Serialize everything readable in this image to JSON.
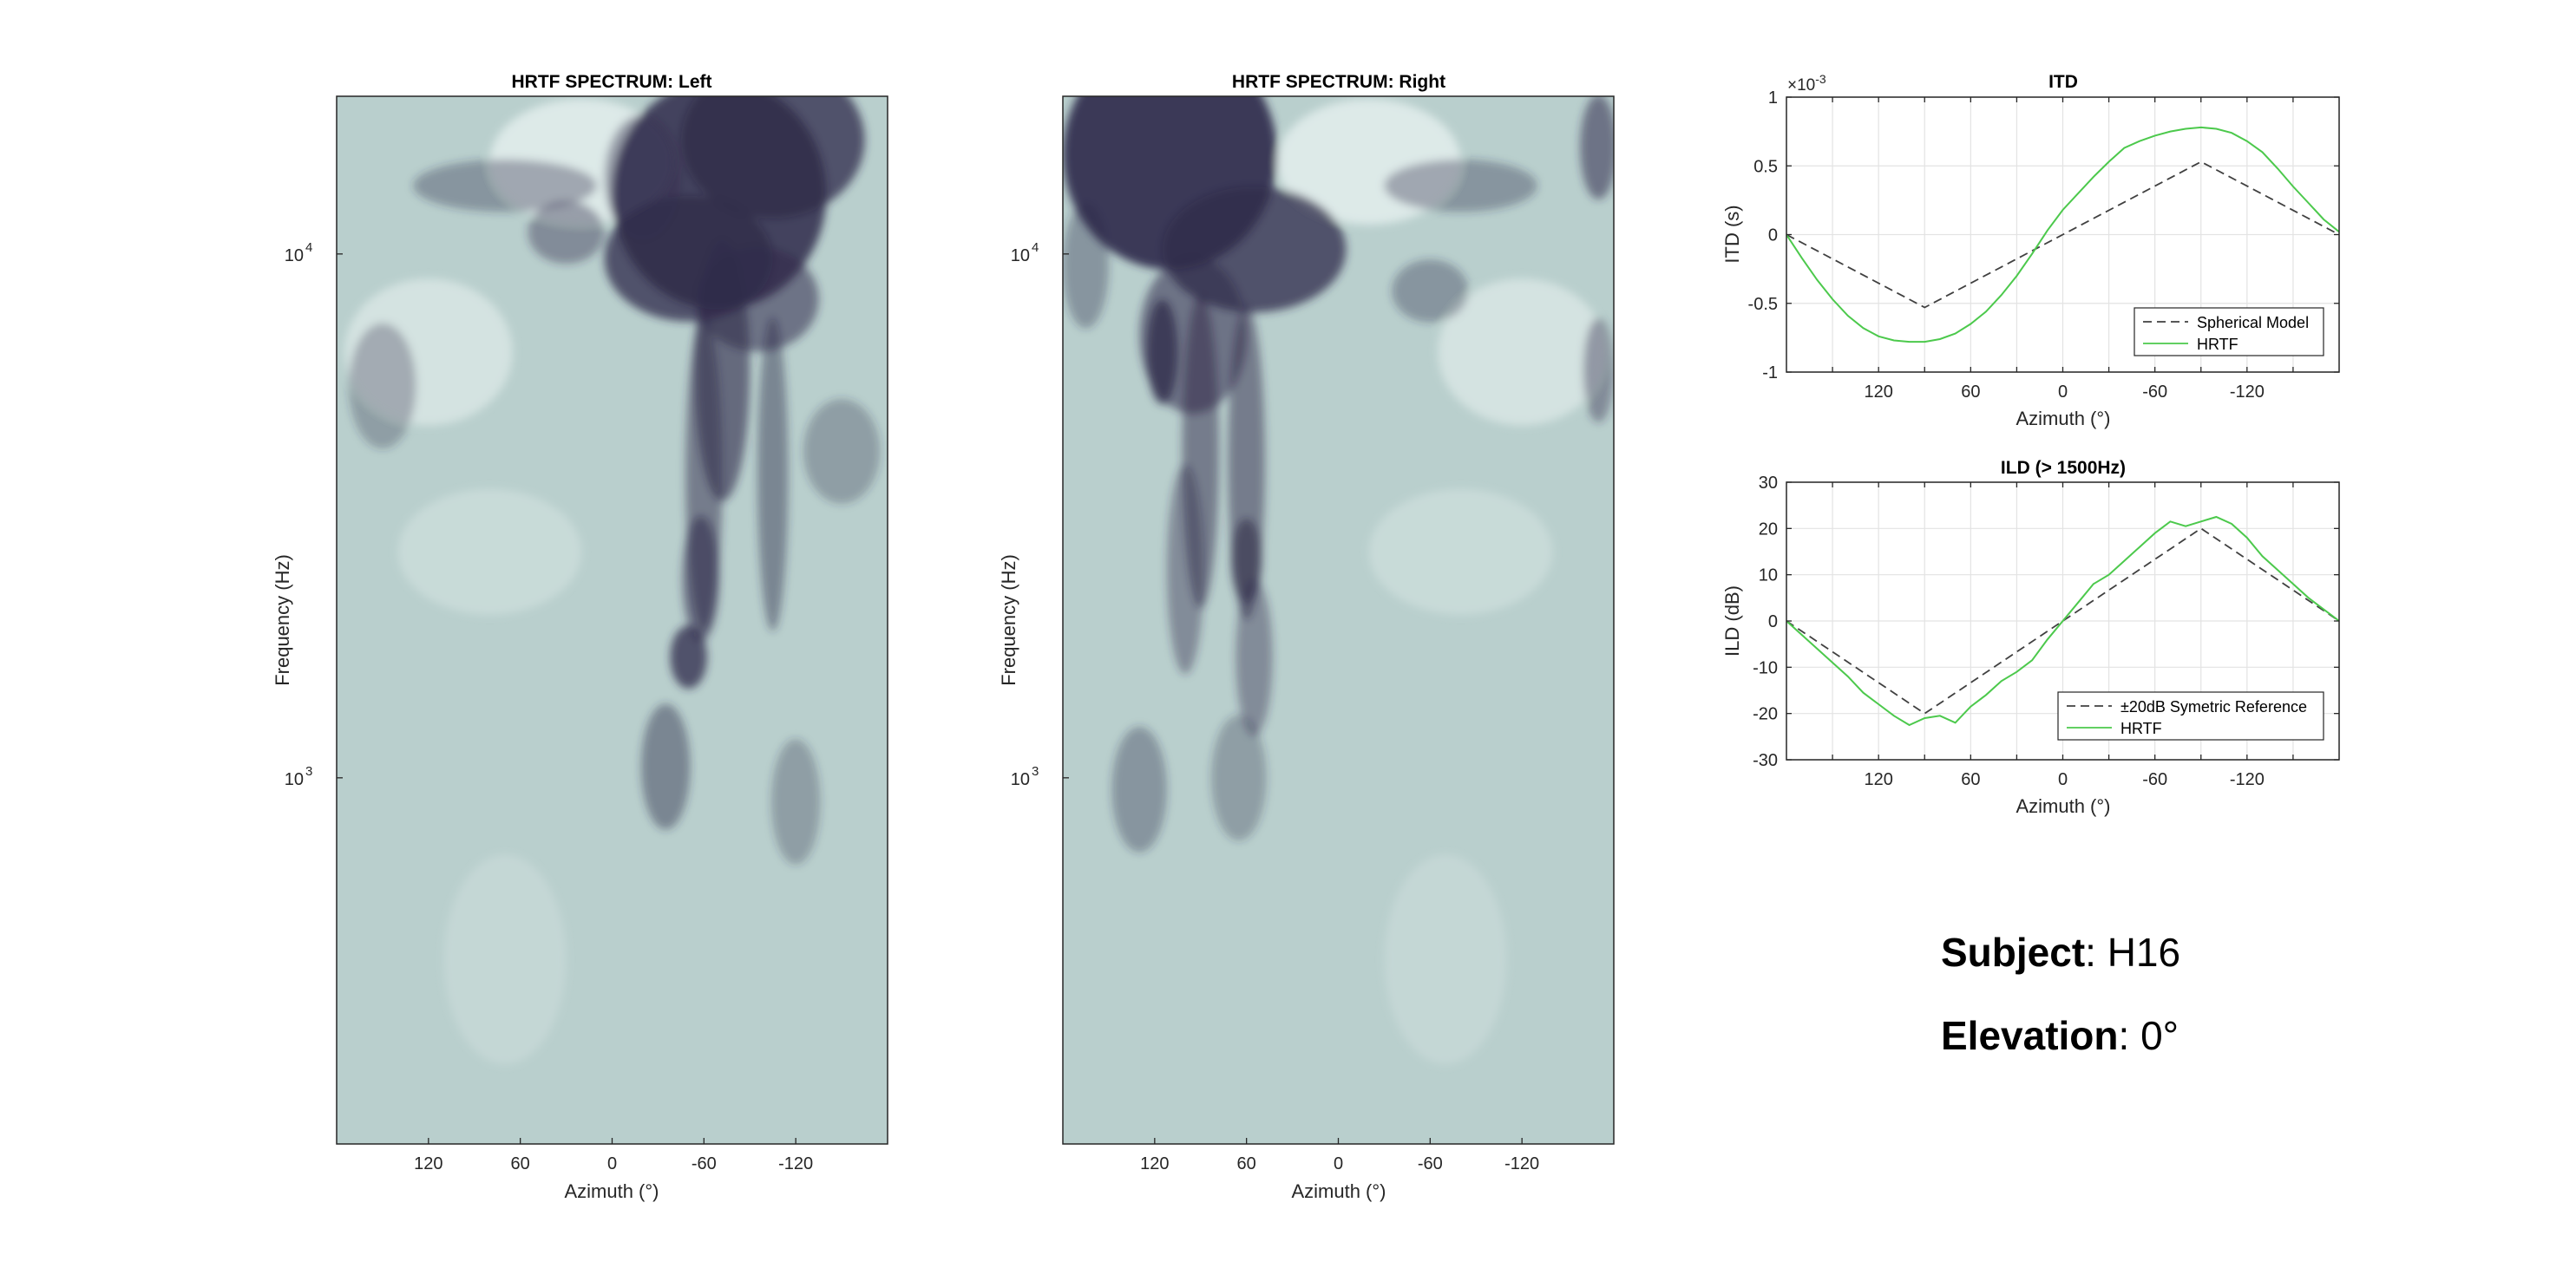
{
  "figure": {
    "subject_label": "Subject",
    "subject_value": ": H16",
    "elevation_label": "Elevation",
    "elevation_value": ": 0°"
  },
  "colors": {
    "hrtf_line": "#4cc94c",
    "reference_line": "#404040",
    "grid": "#e3e3e3",
    "axis": "#262626",
    "spectrum_light": "#e6f0ef",
    "spectrum_mid": "#b7cdcb",
    "spectrum_dark": "#2f2a4a"
  },
  "chart_data": [
    {
      "type": "heatmap",
      "title": "HRTF SPECTRUM: Left",
      "xlabel": "Azimuth (°)",
      "ylabel": "Frequency (Hz)",
      "xlim": [
        180,
        -180
      ],
      "ylim": [
        200,
        20000
      ],
      "yscale": "log",
      "xticks": [
        120,
        60,
        0,
        -60,
        -120
      ],
      "xticklabels": [
        "120",
        "60",
        "0",
        "-60",
        "-120"
      ],
      "yticks": [
        1000,
        10000
      ],
      "yticklabels": [
        {
          "base": "10",
          "exp": "3"
        },
        {
          "base": "10",
          "exp": "4"
        }
      ],
      "features": [
        {
          "az": -70,
          "f": 13000,
          "w": 70,
          "fw": 0.22,
          "a": 0.85
        },
        {
          "az": -105,
          "f": 16500,
          "w": 60,
          "fw": 0.15,
          "a": 0.75
        },
        {
          "az": -50,
          "f": 9800,
          "w": 55,
          "fw": 0.12,
          "a": 0.75
        },
        {
          "az": -95,
          "f": 8200,
          "w": 40,
          "fw": 0.1,
          "a": 0.55
        },
        {
          "az": -72,
          "f": 6000,
          "w": 18,
          "fw": 0.25,
          "a": 0.6
        },
        {
          "az": -60,
          "f": 3800,
          "w": 12,
          "fw": 0.3,
          "a": 0.5
        },
        {
          "az": -105,
          "f": 3800,
          "w": 10,
          "fw": 0.3,
          "a": 0.45
        },
        {
          "az": -58,
          "f": 2400,
          "w": 12,
          "fw": 0.12,
          "a": 0.55
        },
        {
          "az": -50,
          "f": 1700,
          "w": 12,
          "fw": 0.06,
          "a": 0.75
        },
        {
          "az": -35,
          "f": 1050,
          "w": 16,
          "fw": 0.12,
          "a": 0.45
        },
        {
          "az": -120,
          "f": 900,
          "w": 16,
          "fw": 0.12,
          "a": 0.3
        },
        {
          "az": 70,
          "f": 13500,
          "w": 60,
          "fw": 0.05,
          "a": 0.35
        },
        {
          "az": -20,
          "f": 14000,
          "w": 25,
          "fw": 0.12,
          "a": 0.4
        },
        {
          "az": 150,
          "f": 5600,
          "w": 22,
          "fw": 0.12,
          "a": 0.3
        },
        {
          "az": -150,
          "f": 4200,
          "w": 25,
          "fw": 0.1,
          "a": 0.3
        },
        {
          "az": 30,
          "f": 11000,
          "w": 25,
          "fw": 0.06,
          "a": 0.4
        }
      ]
    },
    {
      "type": "heatmap",
      "title": "HRTF SPECTRUM: Right",
      "xlabel": "Azimuth (°)",
      "ylabel": "Frequency (Hz)",
      "xlim": [
        180,
        -180
      ],
      "ylim": [
        200,
        20000
      ],
      "yscale": "log",
      "xticks": [
        120,
        60,
        0,
        -60,
        -120
      ],
      "xticklabels": [
        "120",
        "60",
        "0",
        "-60",
        "-120"
      ],
      "yticks": [
        1000,
        10000
      ],
      "yticklabels": [
        {
          "base": "10",
          "exp": "3"
        },
        {
          "base": "10",
          "exp": "4"
        }
      ],
      "features": [
        {
          "az": 110,
          "f": 15500,
          "w": 70,
          "fw": 0.22,
          "a": 0.9
        },
        {
          "az": 55,
          "f": 10200,
          "w": 60,
          "fw": 0.12,
          "a": 0.75
        },
        {
          "az": 95,
          "f": 7000,
          "w": 35,
          "fw": 0.15,
          "a": 0.55
        },
        {
          "az": 115,
          "f": 6500,
          "w": 10,
          "fw": 0.1,
          "a": 0.75
        },
        {
          "az": 90,
          "f": 4200,
          "w": 12,
          "fw": 0.3,
          "a": 0.5
        },
        {
          "az": 60,
          "f": 4000,
          "w": 12,
          "fw": 0.3,
          "a": 0.5
        },
        {
          "az": 60,
          "f": 2600,
          "w": 10,
          "fw": 0.08,
          "a": 0.6
        },
        {
          "az": 100,
          "f": 2500,
          "w": 12,
          "fw": 0.2,
          "a": 0.4
        },
        {
          "az": 55,
          "f": 1700,
          "w": 12,
          "fw": 0.15,
          "a": 0.4
        },
        {
          "az": 130,
          "f": 950,
          "w": 18,
          "fw": 0.12,
          "a": 0.35
        },
        {
          "az": 65,
          "f": 1000,
          "w": 18,
          "fw": 0.12,
          "a": 0.3
        },
        {
          "az": -80,
          "f": 13500,
          "w": 50,
          "fw": 0.05,
          "a": 0.35
        },
        {
          "az": -170,
          "f": 16000,
          "w": 12,
          "fw": 0.1,
          "a": 0.55
        },
        {
          "az": -170,
          "f": 6000,
          "w": 10,
          "fw": 0.1,
          "a": 0.4
        },
        {
          "az": 165,
          "f": 9500,
          "w": 15,
          "fw": 0.12,
          "a": 0.35
        },
        {
          "az": -60,
          "f": 8500,
          "w": 25,
          "fw": 0.06,
          "a": 0.35
        }
      ]
    },
    {
      "type": "line",
      "title": "ITD",
      "xlabel": "Azimuth (°)",
      "ylabel": "ITD (s)",
      "exponent_label": "×10",
      "exponent_value": "-3",
      "xlim": [
        180,
        -180
      ],
      "ylim": [
        -1,
        1
      ],
      "xticks": [
        150,
        120,
        90,
        60,
        30,
        0,
        -30,
        -60,
        -90,
        -120,
        -150
      ],
      "xticklabels": [
        "",
        "120",
        "",
        "60",
        "",
        "0",
        "",
        "-60",
        "",
        "-120",
        ""
      ],
      "yticks": [
        -1,
        -0.5,
        0,
        0.5,
        1
      ],
      "yticklabels": [
        "-1",
        "-0.5",
        "0",
        "0.5",
        "1"
      ],
      "grid": true,
      "legend_position": "bottom-right",
      "series": [
        {
          "name": "Spherical Model",
          "style": "dashed",
          "color": "#404040",
          "x": [
            180,
            90,
            0,
            -90,
            -180
          ],
          "y": [
            0,
            -0.53,
            0,
            0.53,
            0
          ]
        },
        {
          "name": "HRTF",
          "style": "solid",
          "color": "#4cc94c",
          "x": [
            180,
            170,
            160,
            150,
            140,
            130,
            120,
            110,
            100,
            90,
            80,
            70,
            60,
            50,
            40,
            30,
            20,
            10,
            0,
            -10,
            -20,
            -30,
            -40,
            -50,
            -60,
            -70,
            -80,
            -90,
            -100,
            -110,
            -120,
            -130,
            -140,
            -150,
            -160,
            -170,
            -180
          ],
          "y": [
            0,
            -0.17,
            -0.33,
            -0.47,
            -0.59,
            -0.68,
            -0.74,
            -0.77,
            -0.78,
            -0.78,
            -0.76,
            -0.72,
            -0.65,
            -0.56,
            -0.44,
            -0.3,
            -0.14,
            0.03,
            0.18,
            0.3,
            0.42,
            0.53,
            0.63,
            0.68,
            0.72,
            0.75,
            0.77,
            0.78,
            0.77,
            0.74,
            0.68,
            0.6,
            0.48,
            0.35,
            0.23,
            0.11,
            0.02
          ]
        }
      ]
    },
    {
      "type": "line",
      "title": "ILD (> 1500Hz)",
      "xlabel": "Azimuth (°)",
      "ylabel": "ILD (dB)",
      "xlim": [
        180,
        -180
      ],
      "ylim": [
        -30,
        30
      ],
      "xticks": [
        150,
        120,
        90,
        60,
        30,
        0,
        -30,
        -60,
        -90,
        -120,
        -150
      ],
      "xticklabels": [
        "",
        "120",
        "",
        "60",
        "",
        "0",
        "",
        "-60",
        "",
        "-120",
        ""
      ],
      "yticks": [
        -30,
        -20,
        -10,
        0,
        10,
        20,
        30
      ],
      "yticklabels": [
        "-30",
        "-20",
        "-10",
        "0",
        "10",
        "20",
        "30"
      ],
      "grid": true,
      "legend_position": "bottom-right",
      "series": [
        {
          "name": "±20dB Symetric Reference",
          "style": "dashed",
          "color": "#404040",
          "x": [
            180,
            90,
            0,
            -90,
            -180
          ],
          "y": [
            0,
            -20,
            0,
            20,
            0
          ]
        },
        {
          "name": "HRTF",
          "style": "solid",
          "color": "#4cc94c",
          "x": [
            180,
            170,
            160,
            150,
            140,
            130,
            120,
            110,
            100,
            90,
            80,
            70,
            60,
            50,
            40,
            30,
            20,
            10,
            0,
            -10,
            -20,
            -30,
            -40,
            -50,
            -60,
            -70,
            -80,
            -90,
            -100,
            -110,
            -120,
            -130,
            -140,
            -150,
            -160,
            -170,
            -180
          ],
          "y": [
            0,
            -3,
            -6,
            -9,
            -12,
            -15.5,
            -18,
            -20.5,
            -22.5,
            -21,
            -20.5,
            -22,
            -18.5,
            -16,
            -13,
            -11,
            -8.5,
            -4,
            0,
            4,
            8,
            10,
            13,
            16,
            19,
            21.5,
            20.5,
            21.5,
            22.5,
            21,
            18,
            14,
            11,
            8,
            5,
            2.5,
            0
          ]
        }
      ]
    }
  ]
}
